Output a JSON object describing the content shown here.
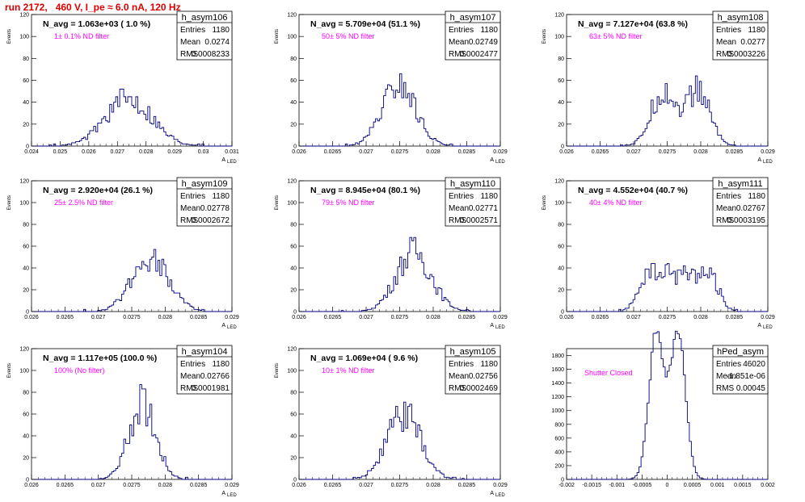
{
  "page_title": "run 2172,   460 V, I_pe ≈ 6.0 nA, 120 Hz",
  "chart_data": [
    {
      "type": "bar",
      "name": "h_asym106",
      "navg": "N_avg = 1.063e+03 ( 1.0 %)",
      "filter": "1± 0.1% ND filter",
      "stats": {
        "entries": "1180",
        "mean": "0.0274",
        "rms": "0.0008233"
      },
      "xticks": [
        "0.024",
        "0.025",
        "0.026",
        "0.027",
        "0.028",
        "0.029",
        "0.03",
        "0.031"
      ],
      "yticks": [
        "0",
        "20",
        "40",
        "60",
        "80",
        "100",
        "120"
      ],
      "ylabel": "Events",
      "xlabel": "A",
      "xlim": [
        0.024,
        0.031
      ],
      "ylim": [
        0,
        120
      ],
      "center": 0.0274,
      "sigma": 0.00082,
      "peak": 43,
      "mode": "broad",
      "seed": 106
    },
    {
      "type": "bar",
      "name": "h_asym107",
      "navg": "N_avg = 5.709e+04 (51.1 %)",
      "filter": "50± 5% ND filter",
      "stats": {
        "entries": "1180",
        "mean": "0.02749",
        "rms": "0.0002477"
      },
      "xticks": [
        "0.026",
        "0.0265",
        "0.027",
        "0.0275",
        "0.028",
        "0.0285",
        "0.029"
      ],
      "yticks": [
        "0",
        "20",
        "40",
        "60",
        "80",
        "100",
        "120"
      ],
      "ylabel": "Events",
      "xlabel": "A",
      "xlim": [
        0.026,
        0.029
      ],
      "ylim": [
        0,
        120
      ],
      "center": 0.02749,
      "sigma": 0.00025,
      "peak": 55,
      "mode": "single",
      "seed": 107
    },
    {
      "type": "bar",
      "name": "h_asym108",
      "navg": "N_avg = 7.127e+04 (63.8 %)",
      "filter": "63± 5% ND filter",
      "stats": {
        "entries": "1180",
        "mean": "0.0277",
        "rms": "0.0003226"
      },
      "xticks": [
        "0.026",
        "0.0265",
        "0.027",
        "0.0275",
        "0.028",
        "0.0285",
        "0.029"
      ],
      "yticks": [
        "0",
        "20",
        "40",
        "60",
        "80",
        "100",
        "120"
      ],
      "ylabel": "Events",
      "xlabel": "A",
      "xlim": [
        0.026,
        0.029
      ],
      "ylim": [
        0,
        120
      ],
      "center": 0.0277,
      "sigma": 0.00018,
      "peak": 50,
      "mode": "double",
      "sep": 0.00052,
      "seed": 108
    },
    {
      "type": "bar",
      "name": "h_asym109",
      "navg": "N_avg = 2.920e+04 (26.1 %)",
      "filter": "25± 2.5% ND filter",
      "stats": {
        "entries": "1180",
        "mean": "0.02778",
        "rms": "0.0002672"
      },
      "xticks": [
        "0.026",
        "0.0265",
        "0.027",
        "0.0275",
        "0.028",
        "0.0285",
        "0.029"
      ],
      "yticks": [
        "0",
        "20",
        "40",
        "60",
        "80",
        "100",
        "120"
      ],
      "ylabel": "Events",
      "xlabel": "A",
      "xlim": [
        0.026,
        0.029
      ],
      "ylim": [
        0,
        120
      ],
      "center": 0.02778,
      "sigma": 0.00027,
      "peak": 52,
      "mode": "single",
      "seed": 109
    },
    {
      "type": "bar",
      "name": "h_asym110",
      "navg": "N_avg = 8.945e+04 (80.1 %)",
      "filter": "79± 5% ND filter",
      "stats": {
        "entries": "1180",
        "mean": "0.02771",
        "rms": "0.0002571"
      },
      "xticks": [
        "0.026",
        "0.0265",
        "0.027",
        "0.0275",
        "0.028",
        "0.0285",
        "0.029"
      ],
      "yticks": [
        "0",
        "20",
        "40",
        "60",
        "80",
        "100",
        "120"
      ],
      "ylabel": "Events",
      "xlabel": "A",
      "xlim": [
        0.026,
        0.029
      ],
      "ylim": [
        0,
        120
      ],
      "center": 0.02771,
      "sigma": 0.00026,
      "peak": 55,
      "mode": "single",
      "seed": 110
    },
    {
      "type": "bar",
      "name": "h_asym111",
      "navg": "N_avg = 4.552e+04 (40.7 %)",
      "filter": "40± 4% ND filter",
      "stats": {
        "entries": "1180",
        "mean": "0.02767",
        "rms": "0.0003195"
      },
      "xticks": [
        "0.026",
        "0.0265",
        "0.027",
        "0.0275",
        "0.028",
        "0.0285",
        "0.029"
      ],
      "yticks": [
        "0",
        "20",
        "40",
        "60",
        "80",
        "100",
        "120"
      ],
      "ylabel": "Events",
      "xlabel": "A",
      "xlim": [
        0.026,
        0.029
      ],
      "ylim": [
        0,
        120
      ],
      "center": 0.02767,
      "sigma": 0.00032,
      "peak": 37,
      "mode": "flat",
      "seed": 111
    },
    {
      "type": "bar",
      "name": "h_asym104",
      "navg": "N_avg = 1.117e+05 (100.0 %)",
      "filter": "100% (No filter)",
      "stats": {
        "entries": "1180",
        "mean": "0.02766",
        "rms": "0.0001981"
      },
      "xticks": [
        "0.026",
        "0.0265",
        "0.027",
        "0.0275",
        "0.028",
        "0.0285",
        "0.029"
      ],
      "yticks": [
        "0",
        "20",
        "40",
        "60",
        "80",
        "100",
        "120"
      ],
      "ylabel": "Events",
      "xlabel": "A",
      "xlim": [
        0.026,
        0.029
      ],
      "ylim": [
        0,
        120
      ],
      "center": 0.02766,
      "sigma": 0.0002,
      "peak": 70,
      "mode": "single",
      "seed": 104
    },
    {
      "type": "bar",
      "name": "h_asym105",
      "navg": "N_avg = 1.069e+04 ( 9.6 %)",
      "filter": "10± 1% ND filter",
      "stats": {
        "entries": "1180",
        "mean": "0.02756",
        "rms": "0.0002469"
      },
      "xticks": [
        "0.026",
        "0.0265",
        "0.027",
        "0.0275",
        "0.028",
        "0.0285",
        "0.029"
      ],
      "yticks": [
        "0",
        "20",
        "40",
        "60",
        "80",
        "100",
        "120"
      ],
      "ylabel": "Events",
      "xlabel": "A",
      "xlim": [
        0.026,
        0.029
      ],
      "ylim": [
        0,
        120
      ],
      "center": 0.02756,
      "sigma": 0.00025,
      "peak": 60,
      "mode": "single",
      "seed": 105
    },
    {
      "type": "bar",
      "name": "hPed_asym",
      "navg": "",
      "filter": "Shutter Closed",
      "stats": {
        "entries": "46020",
        "mean": "-1.851e-06",
        "rms": "0.00045"
      },
      "xticks": [
        "-0.002",
        "-0.0015",
        "-0.001",
        "-0.0005",
        "0",
        "0.0005",
        "0.001",
        "0.0015",
        "0.002"
      ],
      "yticks": [
        "0",
        "200",
        "400",
        "600",
        "800",
        "1000",
        "1200",
        "1400",
        "1600",
        "1800"
      ],
      "ylabel": "",
      "xlabel": "",
      "xlim": [
        -0.002,
        0.002
      ],
      "ylim": [
        0,
        1900
      ],
      "center": 0,
      "sigma": 0.00014,
      "peak": 1850,
      "mode": "ped",
      "sep": 0.00046,
      "seed": 99
    }
  ]
}
